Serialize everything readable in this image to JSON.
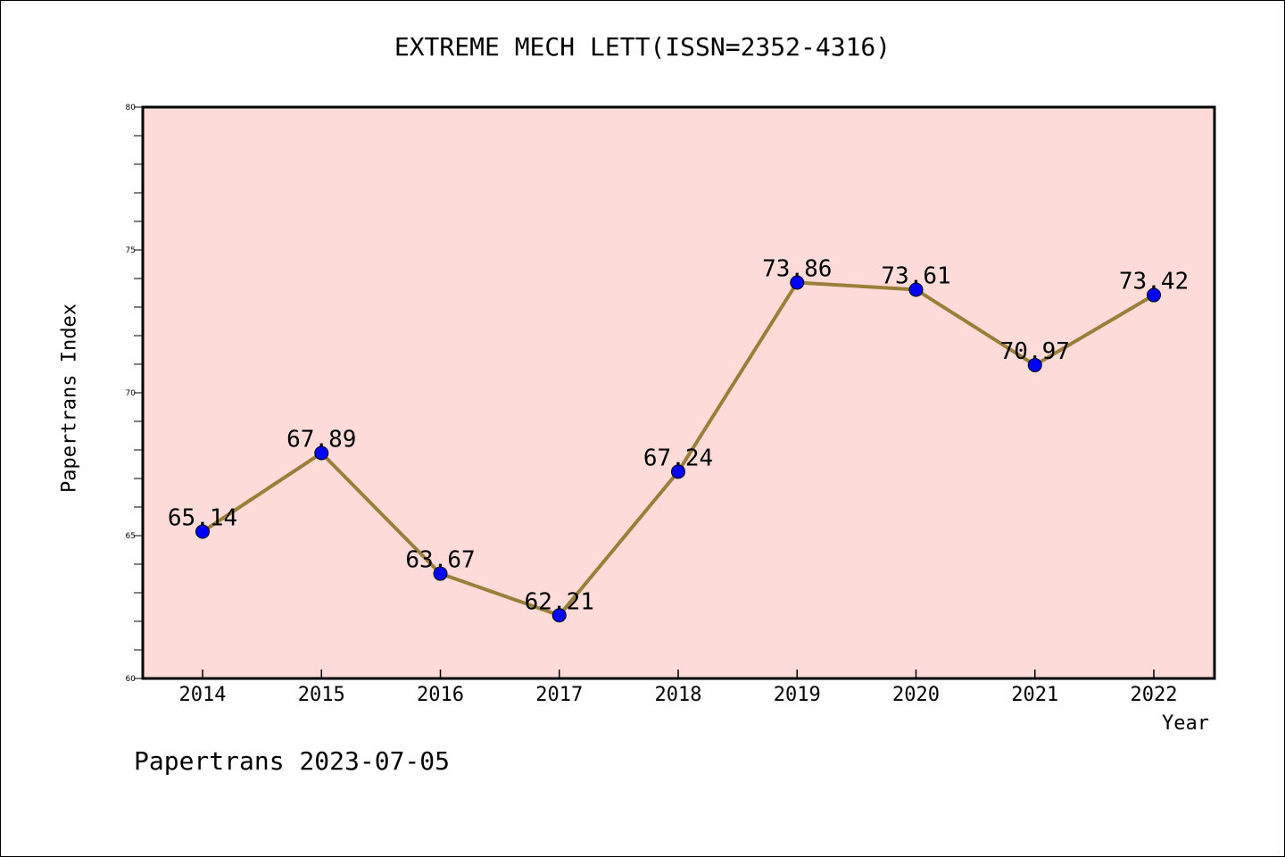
{
  "chart_data": {
    "type": "line",
    "title": "EXTREME MECH LETT(ISSN=2352-4316)",
    "xlabel": "Year",
    "ylabel": "Papertrans Index",
    "categories": [
      "2014",
      "2015",
      "2016",
      "2017",
      "2018",
      "2019",
      "2020",
      "2021",
      "2022"
    ],
    "series": [
      {
        "values": [
          65.14,
          67.89,
          63.67,
          62.21,
          67.24,
          73.86,
          73.61,
          70.97,
          73.42
        ],
        "data_labels": [
          "65.14",
          "67.89",
          "63.67",
          "62.21",
          "67.24",
          "73.86",
          "73.61",
          "70.97",
          "73.42"
        ]
      }
    ],
    "ylim": [
      60,
      80
    ],
    "yticks": [
      60,
      65,
      70,
      75,
      80
    ],
    "ytick_labels": [
      "60",
      "65",
      "70",
      "75",
      "80"
    ],
    "grid": false,
    "colors": {
      "plot_background": "#fddbd8",
      "line": "#9a7f3a",
      "marker": "#0000ff"
    }
  },
  "footer": {
    "text": "Papertrans 2023-07-05"
  }
}
